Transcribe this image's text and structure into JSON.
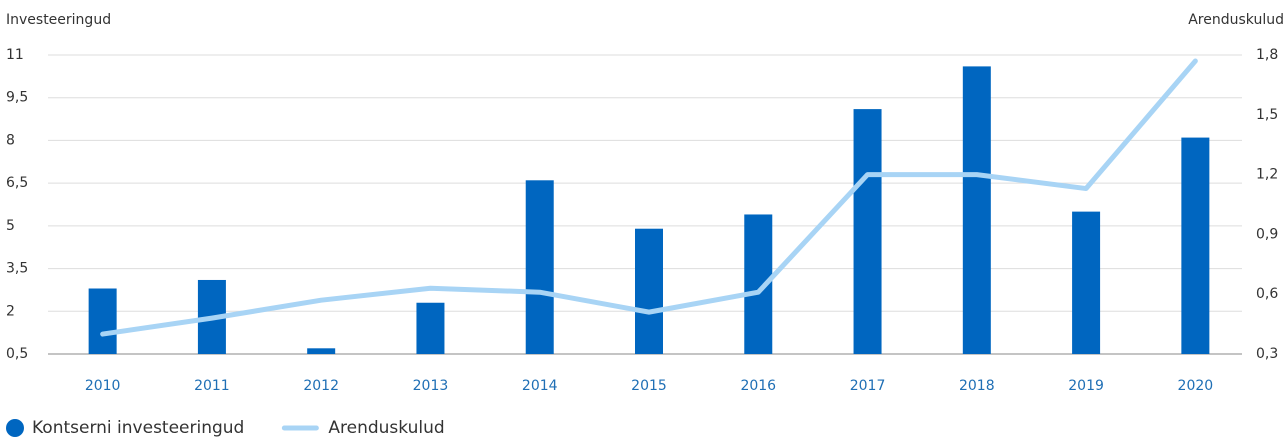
{
  "chart_data": {
    "type": "bar_line",
    "y_label": "Investeeringud",
    "y2_label": "Arenduskulud",
    "categories": [
      "2010",
      "2011",
      "2012",
      "2013",
      "2014",
      "2015",
      "2016",
      "2017",
      "2018",
      "2019",
      "2020"
    ],
    "series": [
      {
        "name": "Kontserni investeeringud",
        "type": "bar",
        "color": "#0066c0",
        "axis": "y",
        "values": [
          2.8,
          3.1,
          0.7,
          2.3,
          6.6,
          4.9,
          5.4,
          9.1,
          10.6,
          5.5,
          8.1
        ]
      },
      {
        "name": "Arenduskulud",
        "type": "line",
        "color": "#a8d4f5",
        "axis": "y2",
        "values": [
          0.4,
          0.48,
          0.57,
          0.63,
          0.61,
          0.51,
          0.61,
          1.2,
          1.2,
          1.13,
          1.77
        ]
      }
    ],
    "ylim": [
      0.5,
      11
    ],
    "yticks": [
      {
        "value": 0.5,
        "label": "0,5"
      },
      2,
      {
        "value": 3.5,
        "label": "3,5"
      },
      5,
      {
        "value": 6.5,
        "label": "6,5"
      },
      8,
      {
        "value": 9.5,
        "label": "9,5"
      },
      11
    ],
    "y2lim": [
      0.3,
      1.8
    ],
    "y2ticks": [
      {
        "value": 0.3,
        "label": "0,3"
      },
      {
        "value": 0.6,
        "label": "0,6"
      },
      {
        "value": 0.9,
        "label": "0,9"
      },
      {
        "value": 1.2,
        "label": "1,2"
      },
      {
        "value": 1.5,
        "label": "1,5"
      },
      {
        "value": 1.8,
        "label": "1,8"
      }
    ],
    "grid": true,
    "legend": "bottom-left"
  }
}
